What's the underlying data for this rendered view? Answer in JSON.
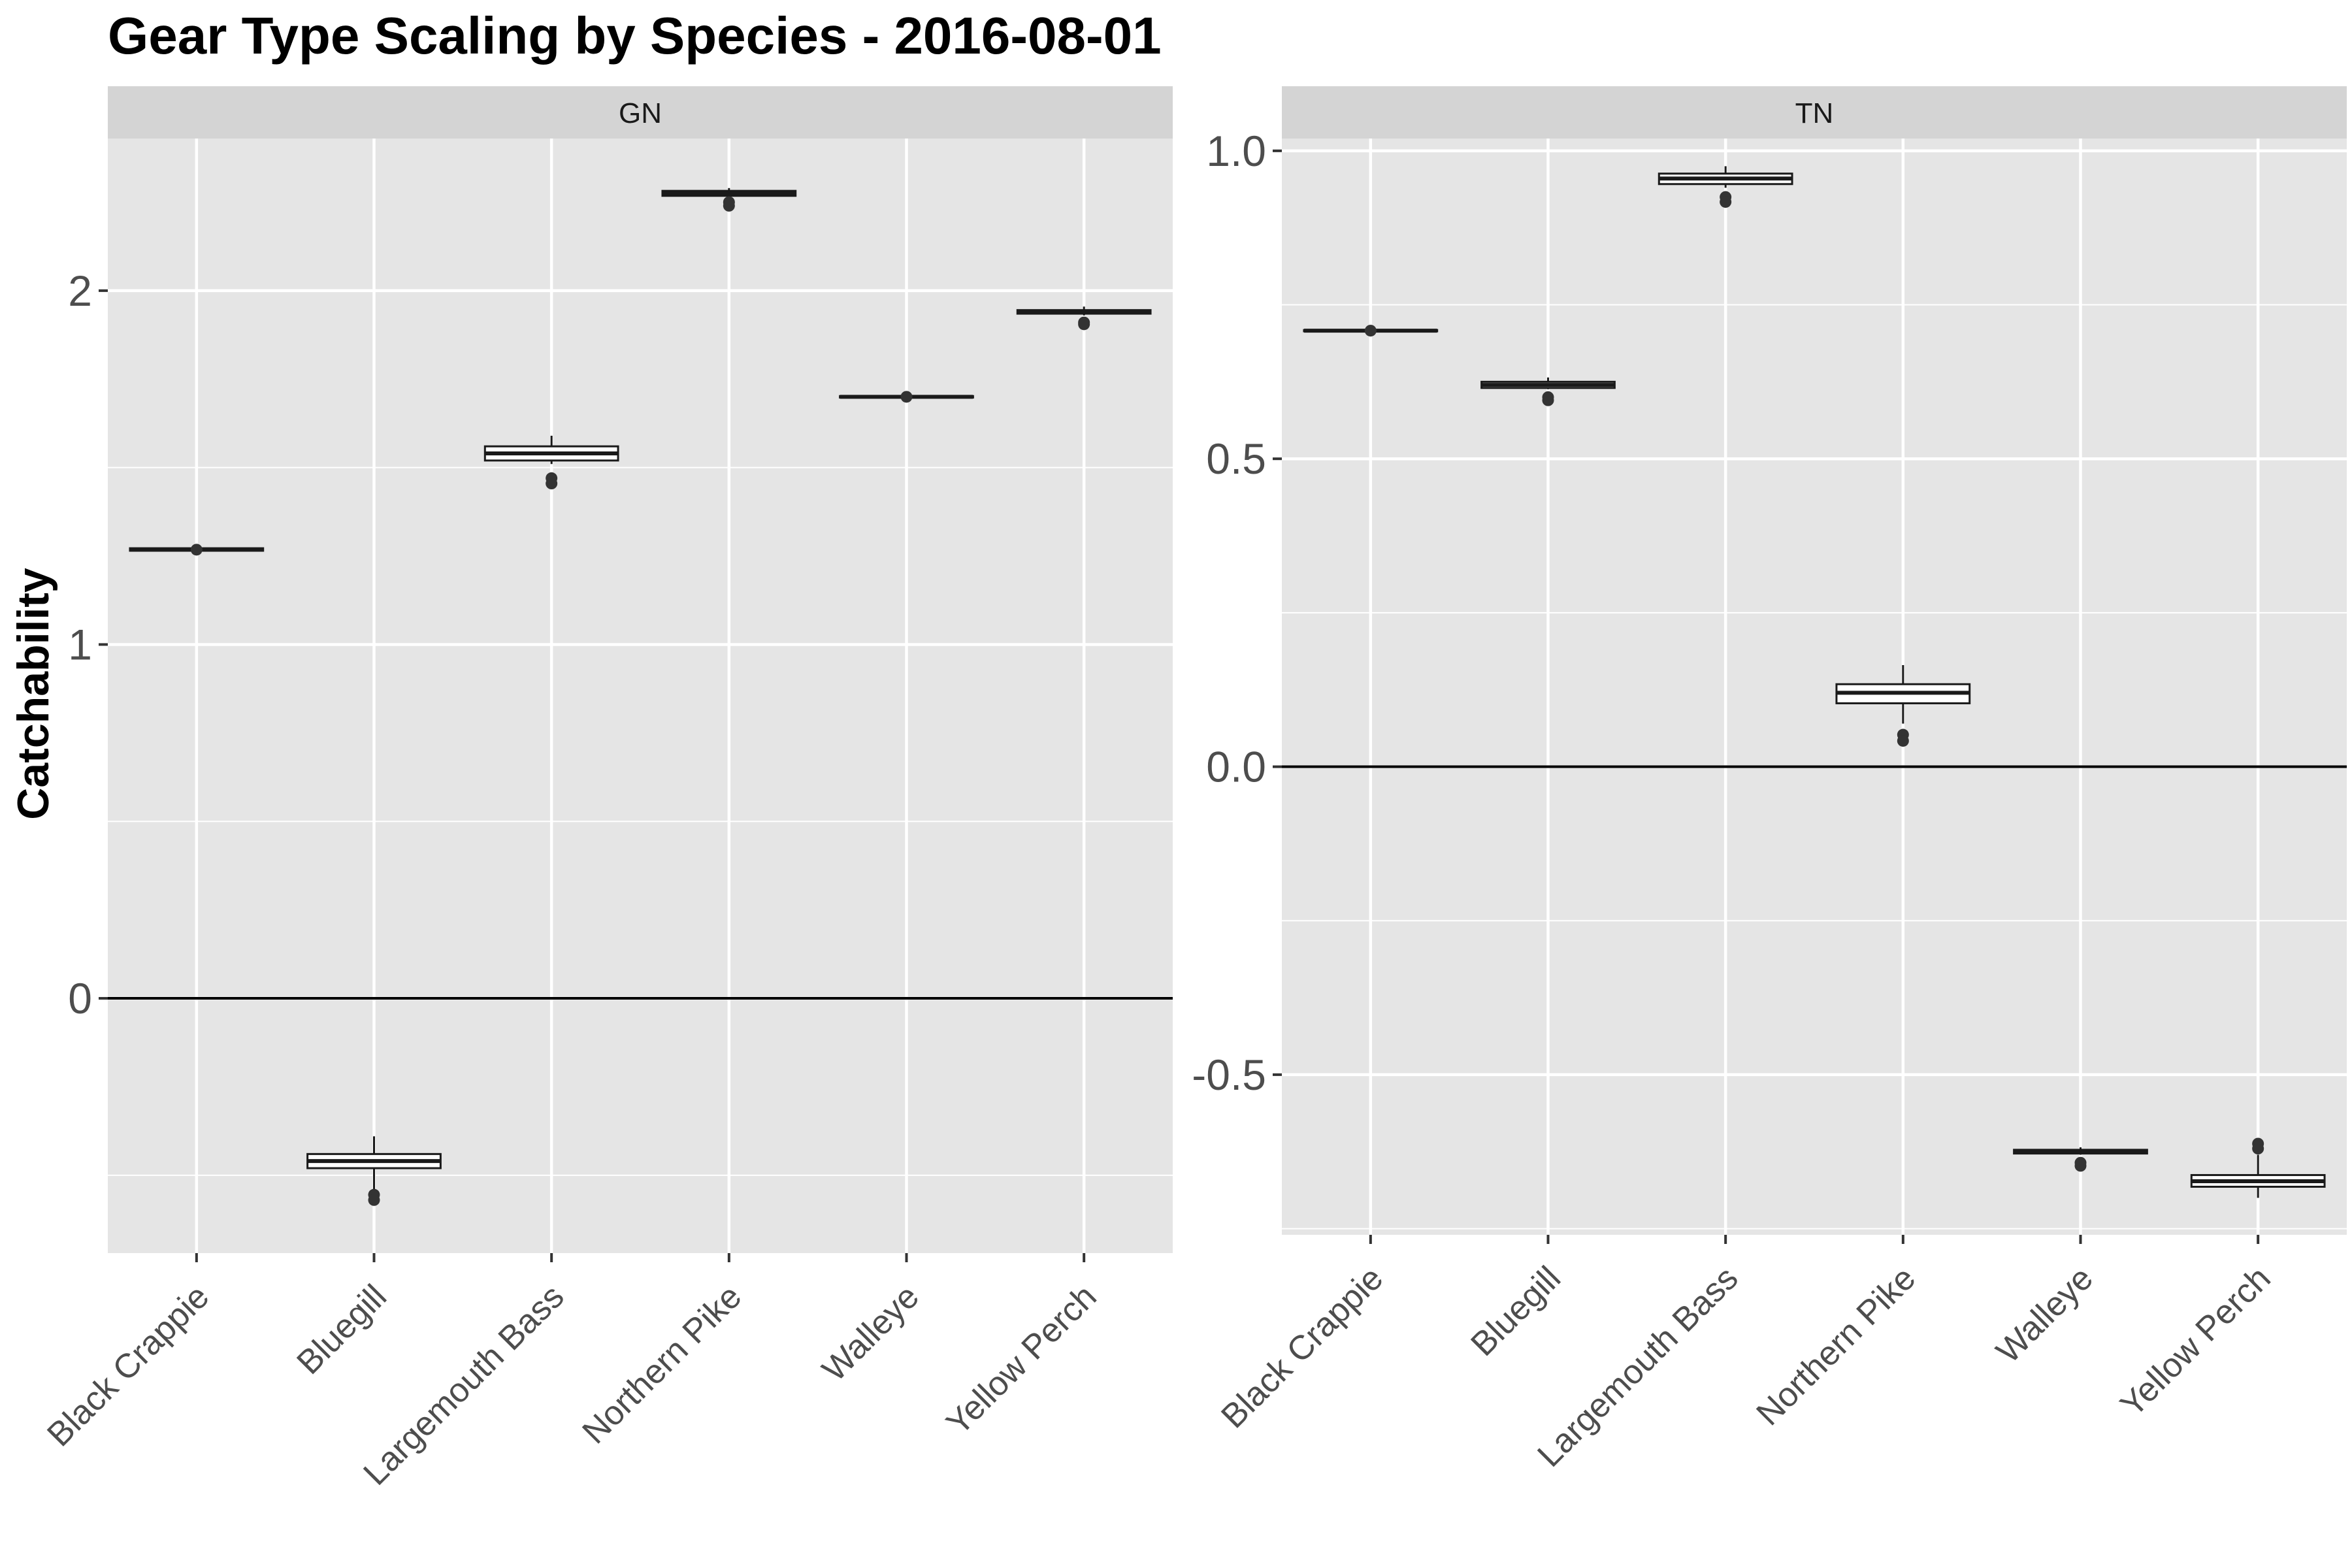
{
  "chart_data": {
    "type": "boxplot",
    "title": "Gear Type Scaling by Species - 2016-08-01",
    "ylabel": "Catchability",
    "xlabel": "",
    "categories": [
      "Black Crappie",
      "Bluegill",
      "Largemouth Bass",
      "Northern Pike",
      "Walleye",
      "Yellow Perch"
    ],
    "reference_line_y": 0,
    "grid": true,
    "colors": {
      "panel_bg": "#e5e5e5",
      "strip_bg": "#d4d4d4",
      "grid": "#ffffff",
      "box_fill": "#ffffff",
      "box_line": "#1a1a1a",
      "axis_text": "#4d4d4d"
    },
    "facets": [
      {
        "label": "GN",
        "ylim": [
          -0.72,
          2.43
        ],
        "yticks": [
          0,
          1,
          2
        ],
        "ytick_labels": [
          "0",
          "1",
          "2"
        ],
        "boxes": [
          {
            "category": "Black Crappie",
            "lower": 1.265,
            "q1": 1.265,
            "median": 1.268,
            "q3": 1.272,
            "upper": 1.272,
            "outliers": [
              1.268
            ]
          },
          {
            "category": "Bluegill",
            "lower": -0.54,
            "q1": -0.48,
            "median": -0.46,
            "q3": -0.44,
            "upper": -0.39,
            "outliers": [
              -0.555,
              -0.57
            ]
          },
          {
            "category": "Largemouth Bass",
            "lower": 1.51,
            "q1": 1.52,
            "median": 1.54,
            "q3": 1.56,
            "upper": 1.59,
            "outliers": [
              1.47,
              1.455
            ]
          },
          {
            "category": "Northern Pike",
            "lower": 2.26,
            "q1": 2.268,
            "median": 2.275,
            "q3": 2.282,
            "upper": 2.29,
            "outliers": [
              2.24,
              2.25
            ]
          },
          {
            "category": "Walleye",
            "lower": 1.698,
            "q1": 1.698,
            "median": 1.7,
            "q3": 1.702,
            "upper": 1.702,
            "outliers": [
              1.7
            ]
          },
          {
            "category": "Yellow Perch",
            "lower": 1.93,
            "q1": 1.935,
            "median": 1.94,
            "q3": 1.945,
            "upper": 1.955,
            "outliers": [
              1.91,
              1.905
            ]
          }
        ]
      },
      {
        "label": "TN",
        "ylim": [
          -0.76,
          1.02
        ],
        "yticks": [
          -0.5,
          0,
          0.5,
          1.0
        ],
        "ytick_labels": [
          "-0.5",
          "0.0",
          "0.5",
          "1.0"
        ],
        "boxes": [
          {
            "category": "Black Crappie",
            "lower": 0.707,
            "q1": 0.707,
            "median": 0.708,
            "q3": 0.709,
            "upper": 0.709,
            "outliers": [
              0.708
            ]
          },
          {
            "category": "Bluegill",
            "lower": 0.613,
            "q1": 0.615,
            "median": 0.62,
            "q3": 0.625,
            "upper": 0.632,
            "outliers": [
              0.6,
              0.595
            ]
          },
          {
            "category": "Largemouth Bass",
            "lower": 0.94,
            "q1": 0.946,
            "median": 0.955,
            "q3": 0.963,
            "upper": 0.975,
            "outliers": [
              0.925,
              0.917
            ]
          },
          {
            "category": "Northern Pike",
            "lower": 0.07,
            "q1": 0.103,
            "median": 0.12,
            "q3": 0.134,
            "upper": 0.165,
            "outliers": [
              0.052,
              0.042
            ]
          },
          {
            "category": "Walleye",
            "lower": -0.63,
            "q1": -0.628,
            "median": -0.625,
            "q3": -0.622,
            "upper": -0.618,
            "outliers": [
              -0.643,
              -0.648
            ]
          },
          {
            "category": "Yellow Perch",
            "lower": -0.7,
            "q1": -0.682,
            "median": -0.673,
            "q3": -0.663,
            "upper": -0.63,
            "outliers": [
              -0.612,
              -0.62
            ]
          }
        ]
      }
    ]
  }
}
